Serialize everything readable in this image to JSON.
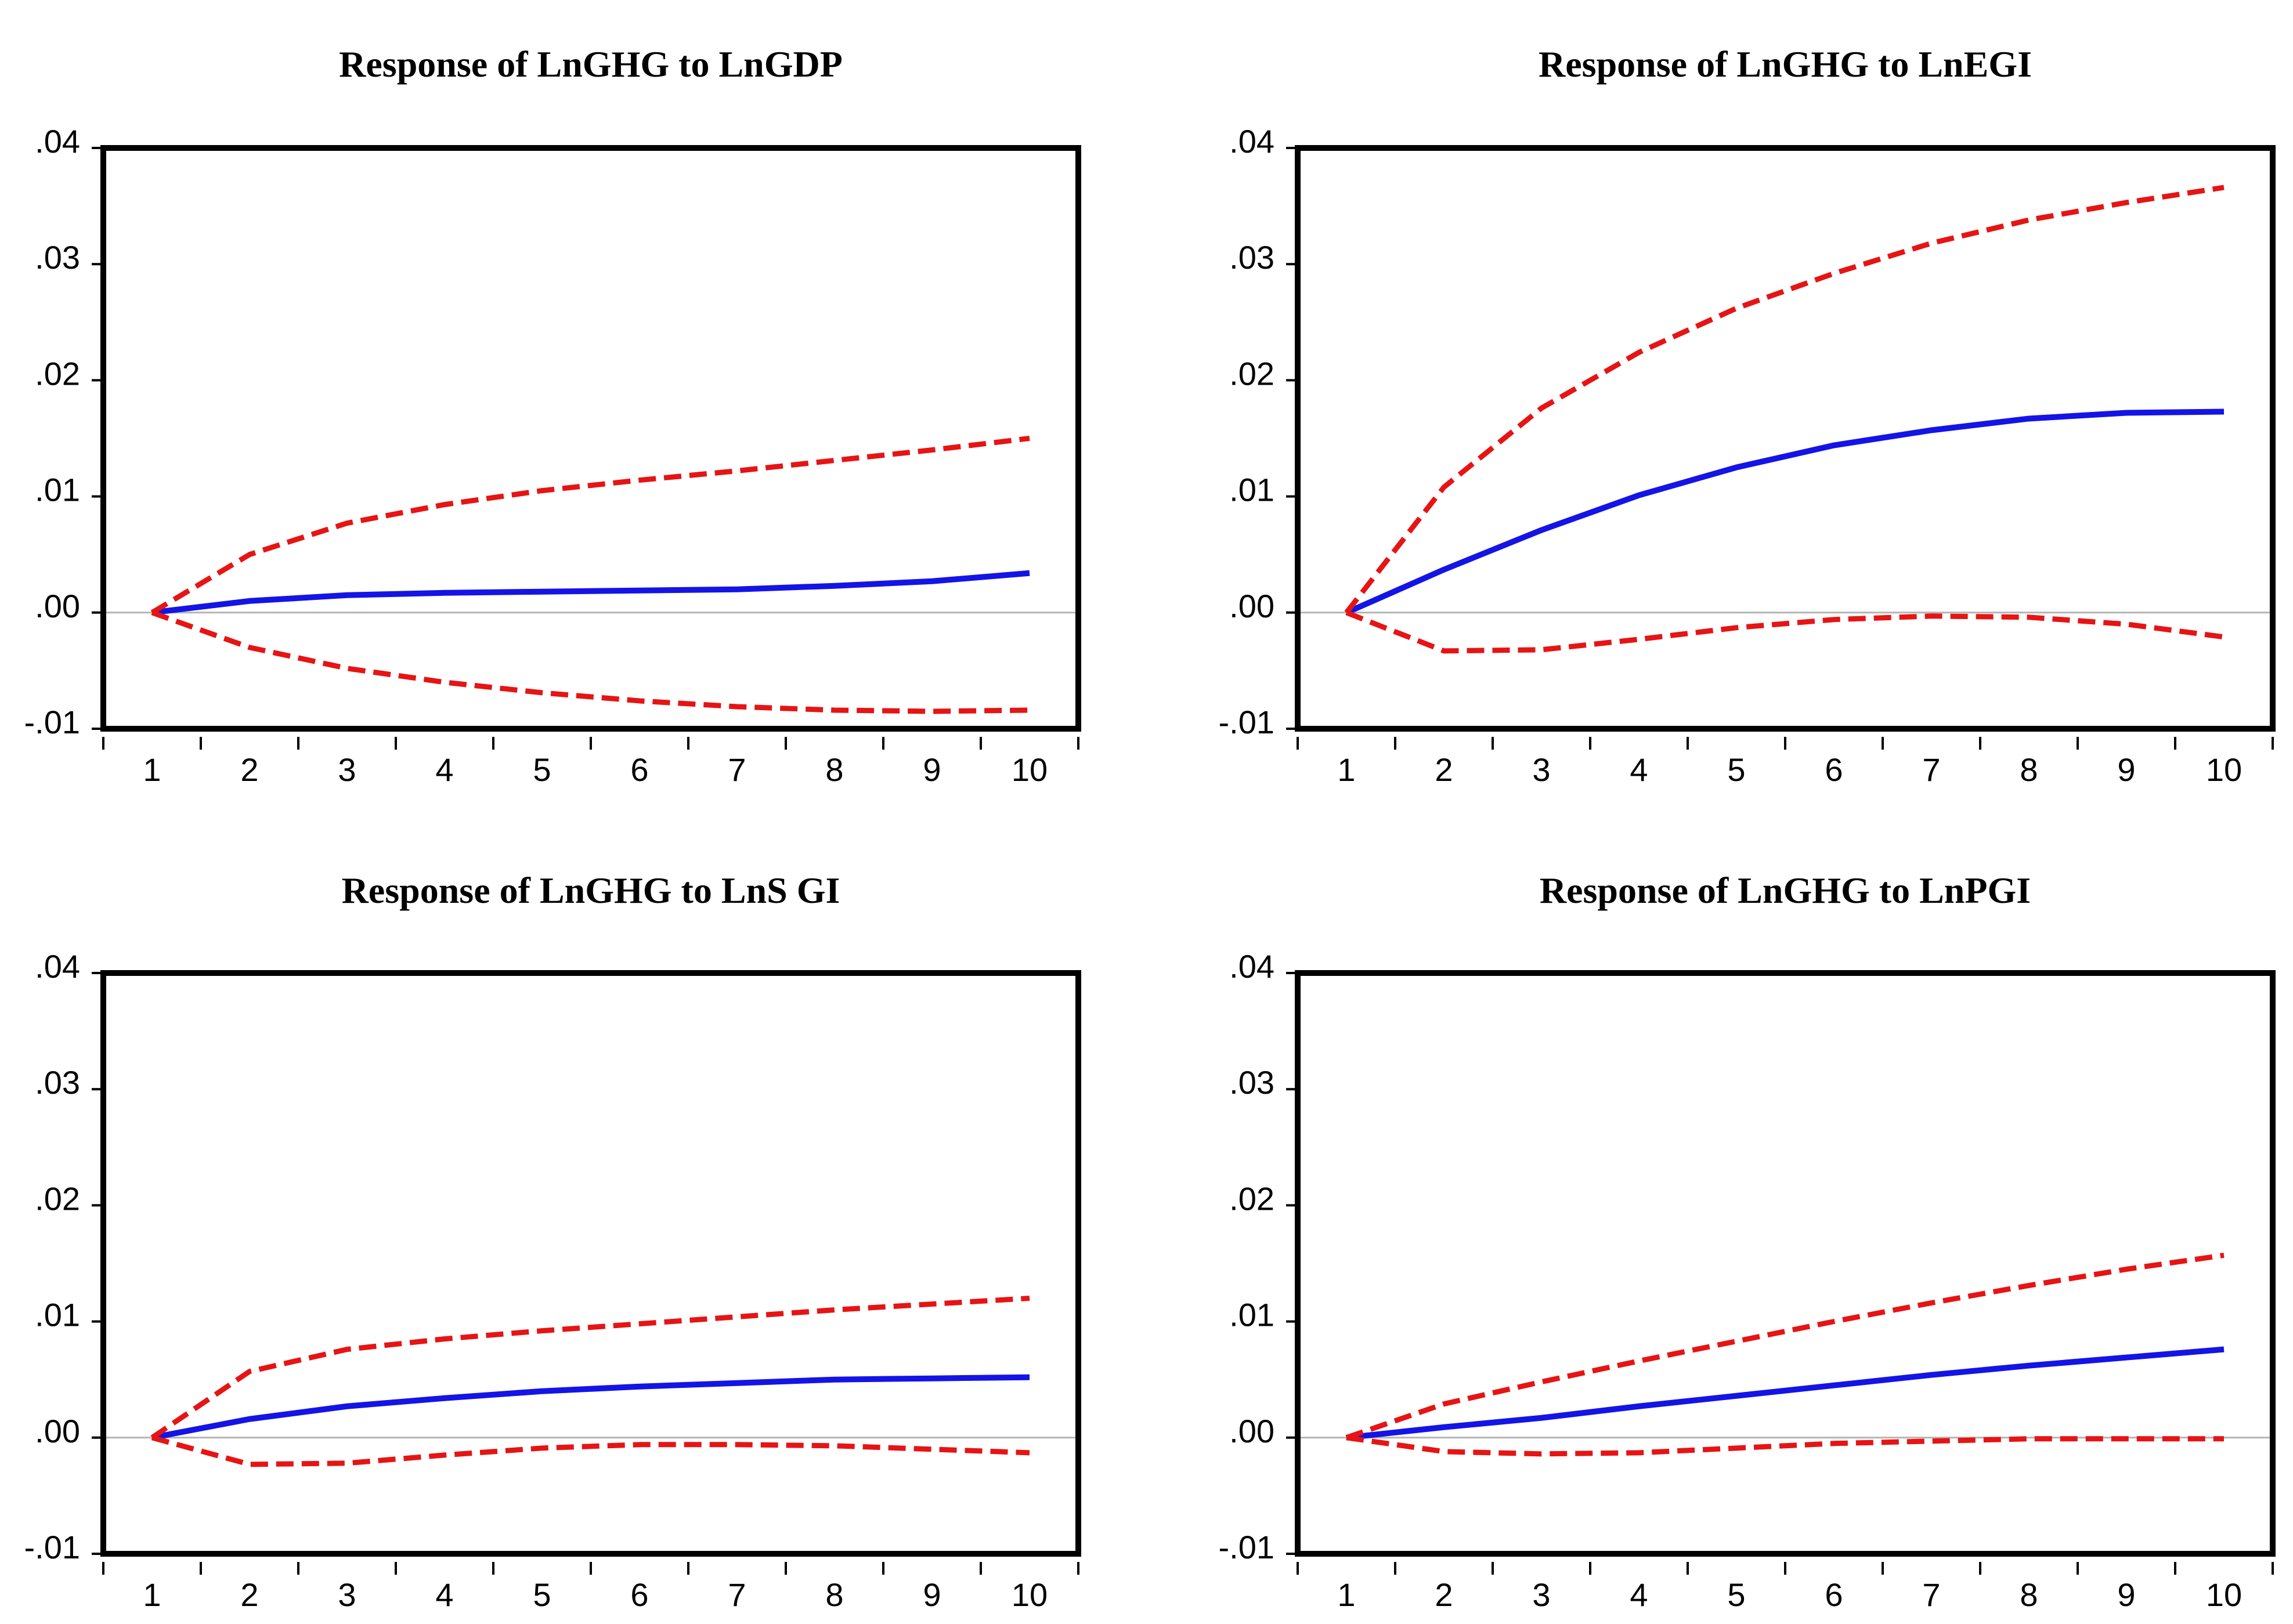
{
  "chart_data": [
    {
      "type": "line",
      "title": "Response of LnGHG to LnGDP",
      "x": [
        1,
        2,
        3,
        4,
        5,
        6,
        7,
        8,
        9,
        10
      ],
      "ylim": [
        -0.01,
        0.04
      ],
      "yticks": [
        ".04",
        ".03",
        ".02",
        ".01",
        ".00",
        "-.01"
      ],
      "ytick_values": [
        0.04,
        0.03,
        0.02,
        0.01,
        0.0,
        -0.01
      ],
      "xticks": [
        "1",
        "2",
        "3",
        "4",
        "5",
        "6",
        "7",
        "8",
        "9",
        "10"
      ],
      "xlabel": "",
      "ylabel": "",
      "series": [
        {
          "name": "Response",
          "style": "solid",
          "color": "#1414e6",
          "values": [
            0.0,
            0.001,
            0.0015,
            0.0017,
            0.0018,
            0.0019,
            0.002,
            0.0023,
            0.0027,
            0.0034
          ]
        },
        {
          "name": "Upper band",
          "style": "dashed",
          "color": "#e61414",
          "values": [
            0.0,
            0.005,
            0.0077,
            0.0093,
            0.0105,
            0.0114,
            0.0122,
            0.0131,
            0.014,
            0.015
          ]
        },
        {
          "name": "Lower band",
          "style": "dashed",
          "color": "#e61414",
          "values": [
            0.0,
            -0.003,
            -0.0048,
            -0.006,
            -0.0069,
            -0.0076,
            -0.0081,
            -0.0084,
            -0.0085,
            -0.0084
          ]
        }
      ]
    },
    {
      "type": "line",
      "title": "Response of LnGHG to LnEGI",
      "x": [
        1,
        2,
        3,
        4,
        5,
        6,
        7,
        8,
        9,
        10
      ],
      "ylim": [
        -0.01,
        0.04
      ],
      "yticks": [
        ".04",
        ".03",
        ".02",
        ".01",
        ".00",
        "-.01"
      ],
      "ytick_values": [
        0.04,
        0.03,
        0.02,
        0.01,
        0.0,
        -0.01
      ],
      "xticks": [
        "1",
        "2",
        "3",
        "4",
        "5",
        "6",
        "7",
        "8",
        "9",
        "10"
      ],
      "xlabel": "",
      "ylabel": "",
      "series": [
        {
          "name": "Response",
          "style": "solid",
          "color": "#1414e6",
          "values": [
            0.0,
            0.0037,
            0.0071,
            0.0101,
            0.0125,
            0.0144,
            0.0157,
            0.0167,
            0.0172,
            0.0173
          ]
        },
        {
          "name": "Upper band",
          "style": "dashed",
          "color": "#e61414",
          "values": [
            0.0,
            0.0108,
            0.0176,
            0.0224,
            0.0262,
            0.0292,
            0.0318,
            0.0338,
            0.0353,
            0.0366
          ]
        },
        {
          "name": "Lower band",
          "style": "dashed",
          "color": "#e61414",
          "values": [
            0.0,
            -0.0033,
            -0.0032,
            -0.0023,
            -0.0013,
            -0.0006,
            -0.0003,
            -0.0004,
            -0.001,
            -0.0021
          ]
        }
      ]
    },
    {
      "type": "line",
      "title": "Response of LnGHG to LnS GI",
      "x": [
        1,
        2,
        3,
        4,
        5,
        6,
        7,
        8,
        9,
        10
      ],
      "ylim": [
        -0.01,
        0.04
      ],
      "yticks": [
        ".04",
        ".03",
        ".02",
        ".01",
        ".00",
        "-.01"
      ],
      "ytick_values": [
        0.04,
        0.03,
        0.02,
        0.01,
        0.0,
        -0.01
      ],
      "xticks": [
        "1",
        "2",
        "3",
        "4",
        "5",
        "6",
        "7",
        "8",
        "9",
        "10"
      ],
      "xlabel": "",
      "ylabel": "",
      "series": [
        {
          "name": "Response",
          "style": "solid",
          "color": "#1414e6",
          "values": [
            0.0,
            0.0016,
            0.0027,
            0.0034,
            0.004,
            0.0044,
            0.0047,
            0.005,
            0.0051,
            0.0052
          ]
        },
        {
          "name": "Upper band",
          "style": "dashed",
          "color": "#e61414",
          "values": [
            0.0,
            0.0057,
            0.0076,
            0.0085,
            0.0092,
            0.0098,
            0.0104,
            0.011,
            0.0115,
            0.012
          ]
        },
        {
          "name": "Lower band",
          "style": "dashed",
          "color": "#e61414",
          "values": [
            0.0,
            -0.0023,
            -0.0022,
            -0.0015,
            -0.0009,
            -0.0006,
            -0.0006,
            -0.0007,
            -0.001,
            -0.0013
          ]
        }
      ]
    },
    {
      "type": "line",
      "title": "Response of LnGHG to LnPGI",
      "x": [
        1,
        2,
        3,
        4,
        5,
        6,
        7,
        8,
        9,
        10
      ],
      "ylim": [
        -0.01,
        0.04
      ],
      "yticks": [
        ".04",
        ".03",
        ".02",
        ".01",
        ".00",
        "-.01"
      ],
      "ytick_values": [
        0.04,
        0.03,
        0.02,
        0.01,
        0.0,
        -0.01
      ],
      "xticks": [
        "1",
        "2",
        "3",
        "4",
        "5",
        "6",
        "7",
        "8",
        "9",
        "10"
      ],
      "xlabel": "",
      "ylabel": "",
      "series": [
        {
          "name": "Response",
          "style": "solid",
          "color": "#1414e6",
          "values": [
            0.0,
            0.0009,
            0.0017,
            0.0027,
            0.0036,
            0.0045,
            0.0054,
            0.0062,
            0.0069,
            0.0076
          ]
        },
        {
          "name": "Upper band",
          "style": "dashed",
          "color": "#e61414",
          "values": [
            0.0,
            0.0029,
            0.0048,
            0.0066,
            0.0083,
            0.01,
            0.0116,
            0.0131,
            0.0145,
            0.0157
          ]
        },
        {
          "name": "Lower band",
          "style": "dashed",
          "color": "#e61414",
          "values": [
            0.0,
            -0.0012,
            -0.0014,
            -0.0013,
            -0.0009,
            -0.0005,
            -0.0003,
            -0.0001,
            -0.0001,
            -0.0001
          ]
        }
      ]
    }
  ]
}
